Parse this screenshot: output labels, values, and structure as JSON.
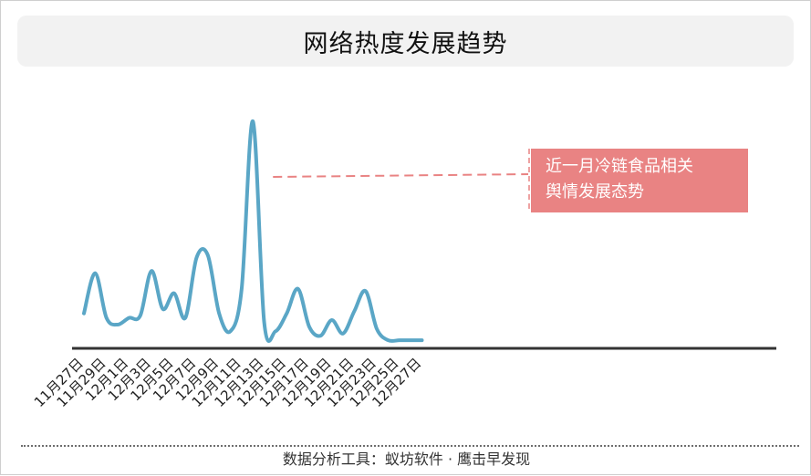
{
  "chart_data": {
    "type": "line",
    "title": "网络热度发展趋势",
    "x": [
      "11月27日",
      "11月28日",
      "11月29日",
      "11月30日",
      "12月1日",
      "12月2日",
      "12月3日",
      "12月4日",
      "12月5日",
      "12月6日",
      "12月7日",
      "12月8日",
      "12月9日",
      "12月10日",
      "12月11日",
      "12月12日",
      "12月13日",
      "12月14日",
      "12月15日",
      "12月16日",
      "12月17日",
      "12月18日",
      "12月19日",
      "12月20日",
      "12月21日",
      "12月22日",
      "12月23日",
      "12月24日",
      "12月25日",
      "12月26日",
      "12月27日"
    ],
    "tick_labels": [
      "11月27日",
      "11月29日",
      "12月1日",
      "12月3日",
      "12月5日",
      "12月7日",
      "12月9日",
      "12月11日",
      "12月13日",
      "12月15日",
      "12月17日",
      "12月19日",
      "12月21日",
      "12月23日",
      "12月25日",
      "12月27日"
    ],
    "series": [
      {
        "values": [
          14,
          32,
          12,
          9,
          12,
          13,
          33,
          16,
          23,
          12,
          39,
          40,
          14,
          6,
          25,
          100,
          10,
          6,
          14,
          25,
          8,
          4,
          11,
          5,
          15,
          24,
          7,
          2,
          2,
          2,
          2
        ]
      }
    ],
    "annotations": [
      {
        "text_line1": "近一月冷链食品相关",
        "text_line2": "舆情发展态势",
        "points_to": "12月12日"
      }
    ],
    "ylim": [
      0,
      100
    ],
    "xlabel": "",
    "ylabel": "",
    "grid": false,
    "legend": "none",
    "line_color": "#5aa6c6",
    "axis_color": "#333333",
    "annotation_color": "#e98383"
  },
  "footer": {
    "source_text": "数据分析工具：蚁坊软件 · 鹰击早发现"
  }
}
